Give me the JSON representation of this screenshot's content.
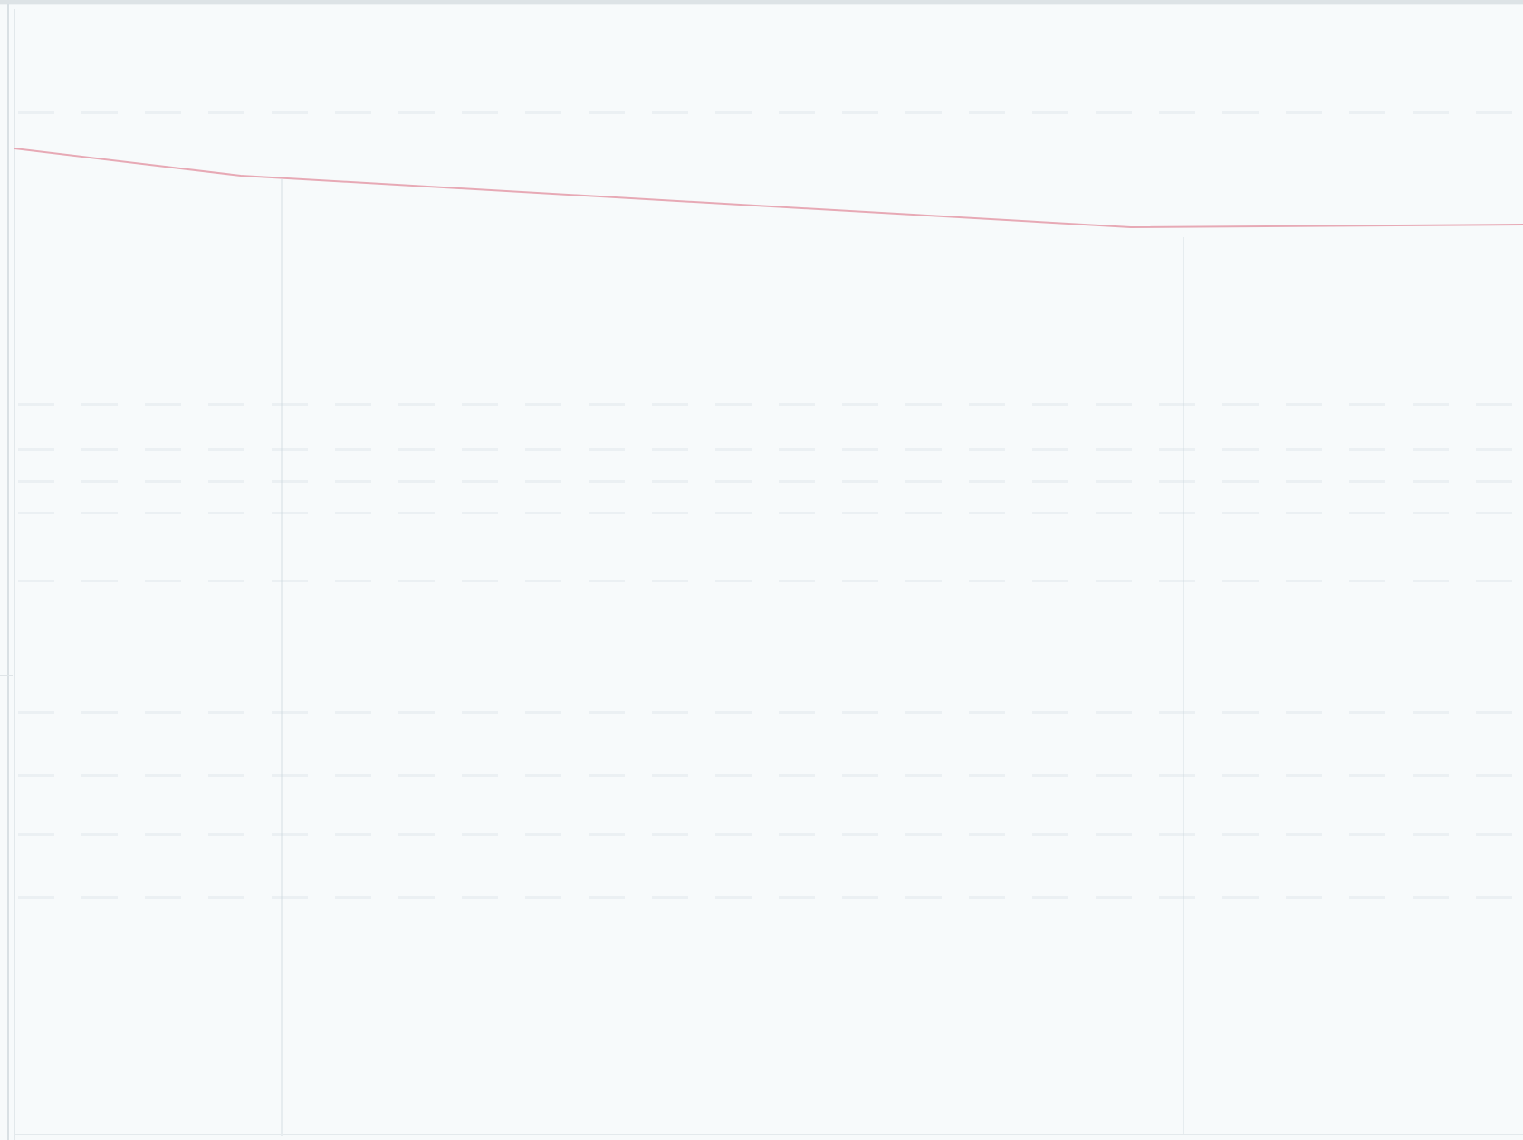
{
  "title": "",
  "colors": {
    "background": "#f7fafb",
    "border": "#d9e0e4",
    "line": "#e7a9b5",
    "grid": "#e6ecef"
  },
  "line_series": {
    "note": "",
    "points": [
      [
        0,
        0.0
      ],
      [
        0.15,
        1.0
      ],
      [
        0.74,
        2.9
      ],
      [
        1.0,
        2.8
      ]
    ]
  }
}
